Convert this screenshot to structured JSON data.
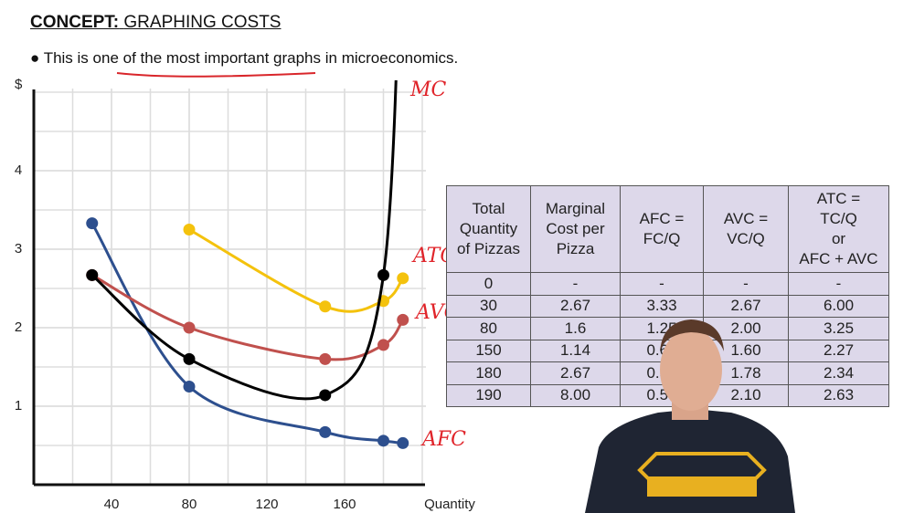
{
  "header": {
    "label": "CONCEPT:",
    "title": "GRAPHING COSTS"
  },
  "bullet": {
    "before": "This is ",
    "emphasis": "one of the most important graphs",
    "after": " in microeconomics."
  },
  "chart_data": {
    "type": "line",
    "y_label": "$",
    "x_label": "Quantity",
    "x": [
      30,
      80,
      150,
      180,
      190
    ],
    "xlim": [
      0,
      200
    ],
    "xticks": [
      40,
      80,
      120,
      160
    ],
    "ylim": [
      0,
      5
    ],
    "yticks": [
      1,
      2,
      3,
      4
    ],
    "grid": true,
    "series": [
      {
        "name": "AFC",
        "color": "#2d4f8e",
        "values": [
          3.33,
          1.25,
          0.67,
          0.56,
          0.53
        ]
      },
      {
        "name": "AVC",
        "color": "#c0504d",
        "values": [
          2.67,
          2.0,
          1.6,
          1.78,
          2.1
        ]
      },
      {
        "name": "ATC",
        "color": "#f4c20d",
        "values": [
          null,
          3.25,
          2.27,
          2.34,
          2.63
        ]
      },
      {
        "name": "MC",
        "color": "#000000",
        "values": [
          2.67,
          1.6,
          1.14,
          2.67,
          8.0
        ]
      }
    ]
  },
  "table": {
    "headers": [
      [
        "Total",
        "Quantity",
        "of Pizzas"
      ],
      [
        "Marginal",
        "Cost per",
        "Pizza"
      ],
      [
        "AFC =",
        "FC/Q"
      ],
      [
        "AVC =",
        "VC/Q"
      ],
      [
        "ATC =",
        "TC/Q",
        "or",
        "AFC + AVC"
      ]
    ],
    "rows": [
      [
        "0",
        "-",
        "-",
        "-",
        "-"
      ],
      [
        "30",
        "2.67",
        "3.33",
        "2.67",
        "6.00"
      ],
      [
        "80",
        "1.6",
        "1.25",
        "2.00",
        "3.25"
      ],
      [
        "150",
        "1.14",
        "0.67",
        "1.60",
        "2.27"
      ],
      [
        "180",
        "2.67",
        "0.56",
        "1.78",
        "2.34"
      ],
      [
        "190",
        "8.00",
        "0.53",
        "2.10",
        "2.63"
      ]
    ]
  }
}
